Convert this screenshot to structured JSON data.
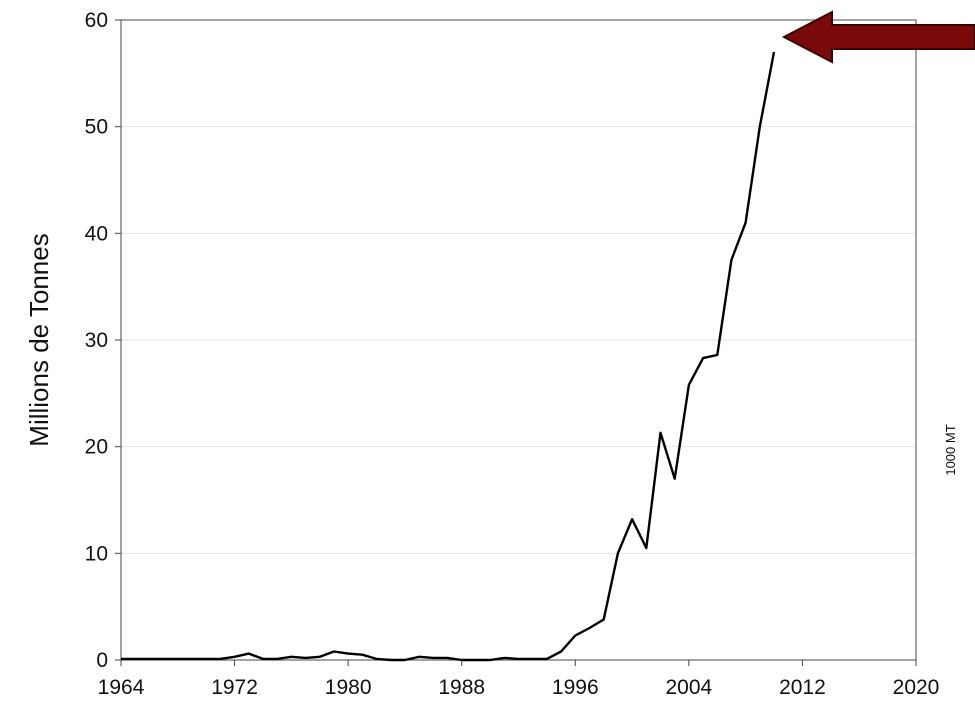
{
  "chart_data": {
    "type": "line",
    "title": "",
    "xlabel": "",
    "ylabel": "Millions de Tonnes",
    "xlim": [
      1964,
      2020
    ],
    "ylim": [
      0,
      60
    ],
    "x_ticks": [
      "1964",
      "1972",
      "1980",
      "1988",
      "1996",
      "2004",
      "2012",
      "2020"
    ],
    "y_ticks": [
      "0",
      "10",
      "20",
      "30",
      "40",
      "50",
      "60"
    ],
    "grid": "horizontal",
    "legend": "none",
    "annotation": "1000 MT",
    "arrow_color": "#7a0a0a",
    "line_color": "#000000",
    "series": [
      {
        "x": [
          1964,
          1965,
          1966,
          1967,
          1968,
          1969,
          1970,
          1971,
          1972,
          1973,
          1974,
          1975,
          1976,
          1977,
          1978,
          1979,
          1980,
          1981,
          1982,
          1983,
          1984,
          1985,
          1986,
          1987,
          1988,
          1989,
          1990,
          1991,
          1992,
          1993,
          1994,
          1995,
          1996,
          1997,
          1998,
          1999,
          2000,
          2001,
          2002,
          2003,
          2004,
          2005,
          2006,
          2007,
          2008,
          2009,
          2010
        ],
        "values": [
          0.1,
          0.1,
          0.1,
          0.1,
          0.1,
          0.1,
          0.1,
          0.1,
          0.3,
          0.6,
          0.1,
          0.1,
          0.3,
          0.2,
          0.3,
          0.8,
          0.6,
          0.5,
          0.1,
          0.0,
          0.0,
          0.3,
          0.2,
          0.2,
          0.0,
          0.0,
          0.0,
          0.2,
          0.1,
          0.1,
          0.1,
          0.8,
          2.3,
          3.0,
          3.8,
          10.0,
          13.2,
          10.5,
          21.3,
          17.0,
          25.8,
          28.3,
          28.6,
          37.5,
          41.0,
          50.0,
          57.0
        ]
      }
    ]
  }
}
